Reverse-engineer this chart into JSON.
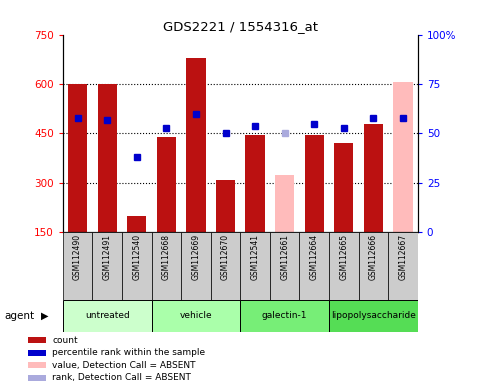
{
  "title": "GDS2221 / 1554316_at",
  "samples": [
    "GSM112490",
    "GSM112491",
    "GSM112540",
    "GSM112668",
    "GSM112669",
    "GSM112670",
    "GSM112541",
    "GSM112661",
    "GSM112664",
    "GSM112665",
    "GSM112666",
    "GSM112667"
  ],
  "groups": [
    {
      "label": "untreated",
      "indices": [
        0,
        1,
        2
      ],
      "color": "#ccffcc"
    },
    {
      "label": "vehicle",
      "indices": [
        3,
        4,
        5
      ],
      "color": "#aaffaa"
    },
    {
      "label": "galectin-1",
      "indices": [
        6,
        7,
        8
      ],
      "color": "#77ee77"
    },
    {
      "label": "lipopolysaccharide",
      "indices": [
        9,
        10,
        11
      ],
      "color": "#55dd55"
    }
  ],
  "bar_values": [
    600,
    600,
    200,
    440,
    680,
    310,
    445,
    325,
    445,
    420,
    480,
    605
  ],
  "bar_absent": [
    false,
    false,
    false,
    false,
    false,
    false,
    false,
    true,
    false,
    false,
    false,
    true
  ],
  "rank_values": [
    58,
    57,
    38,
    53,
    60,
    50,
    54,
    50,
    55,
    53,
    58,
    58
  ],
  "rank_absent": [
    false,
    false,
    false,
    false,
    false,
    false,
    false,
    true,
    false,
    false,
    false,
    false
  ],
  "ylim_left": [
    150,
    750
  ],
  "ylim_right": [
    0,
    100
  ],
  "yticks_left": [
    150,
    300,
    450,
    600,
    750
  ],
  "yticks_right": [
    0,
    25,
    50,
    75,
    100
  ],
  "bar_color_normal": "#bb1111",
  "bar_color_absent": "#ffbbbb",
  "rank_color_normal": "#0000cc",
  "rank_color_absent": "#aaaadd",
  "sample_box_color": "#cccccc",
  "bg_color": "#ffffff",
  "legend_items": [
    {
      "label": "count",
      "color": "#bb1111"
    },
    {
      "label": "percentile rank within the sample",
      "color": "#0000cc"
    },
    {
      "label": "value, Detection Call = ABSENT",
      "color": "#ffbbbb"
    },
    {
      "label": "rank, Detection Call = ABSENT",
      "color": "#aaaadd"
    }
  ],
  "gridline_values": [
    300,
    450,
    600
  ],
  "bar_width": 0.65
}
